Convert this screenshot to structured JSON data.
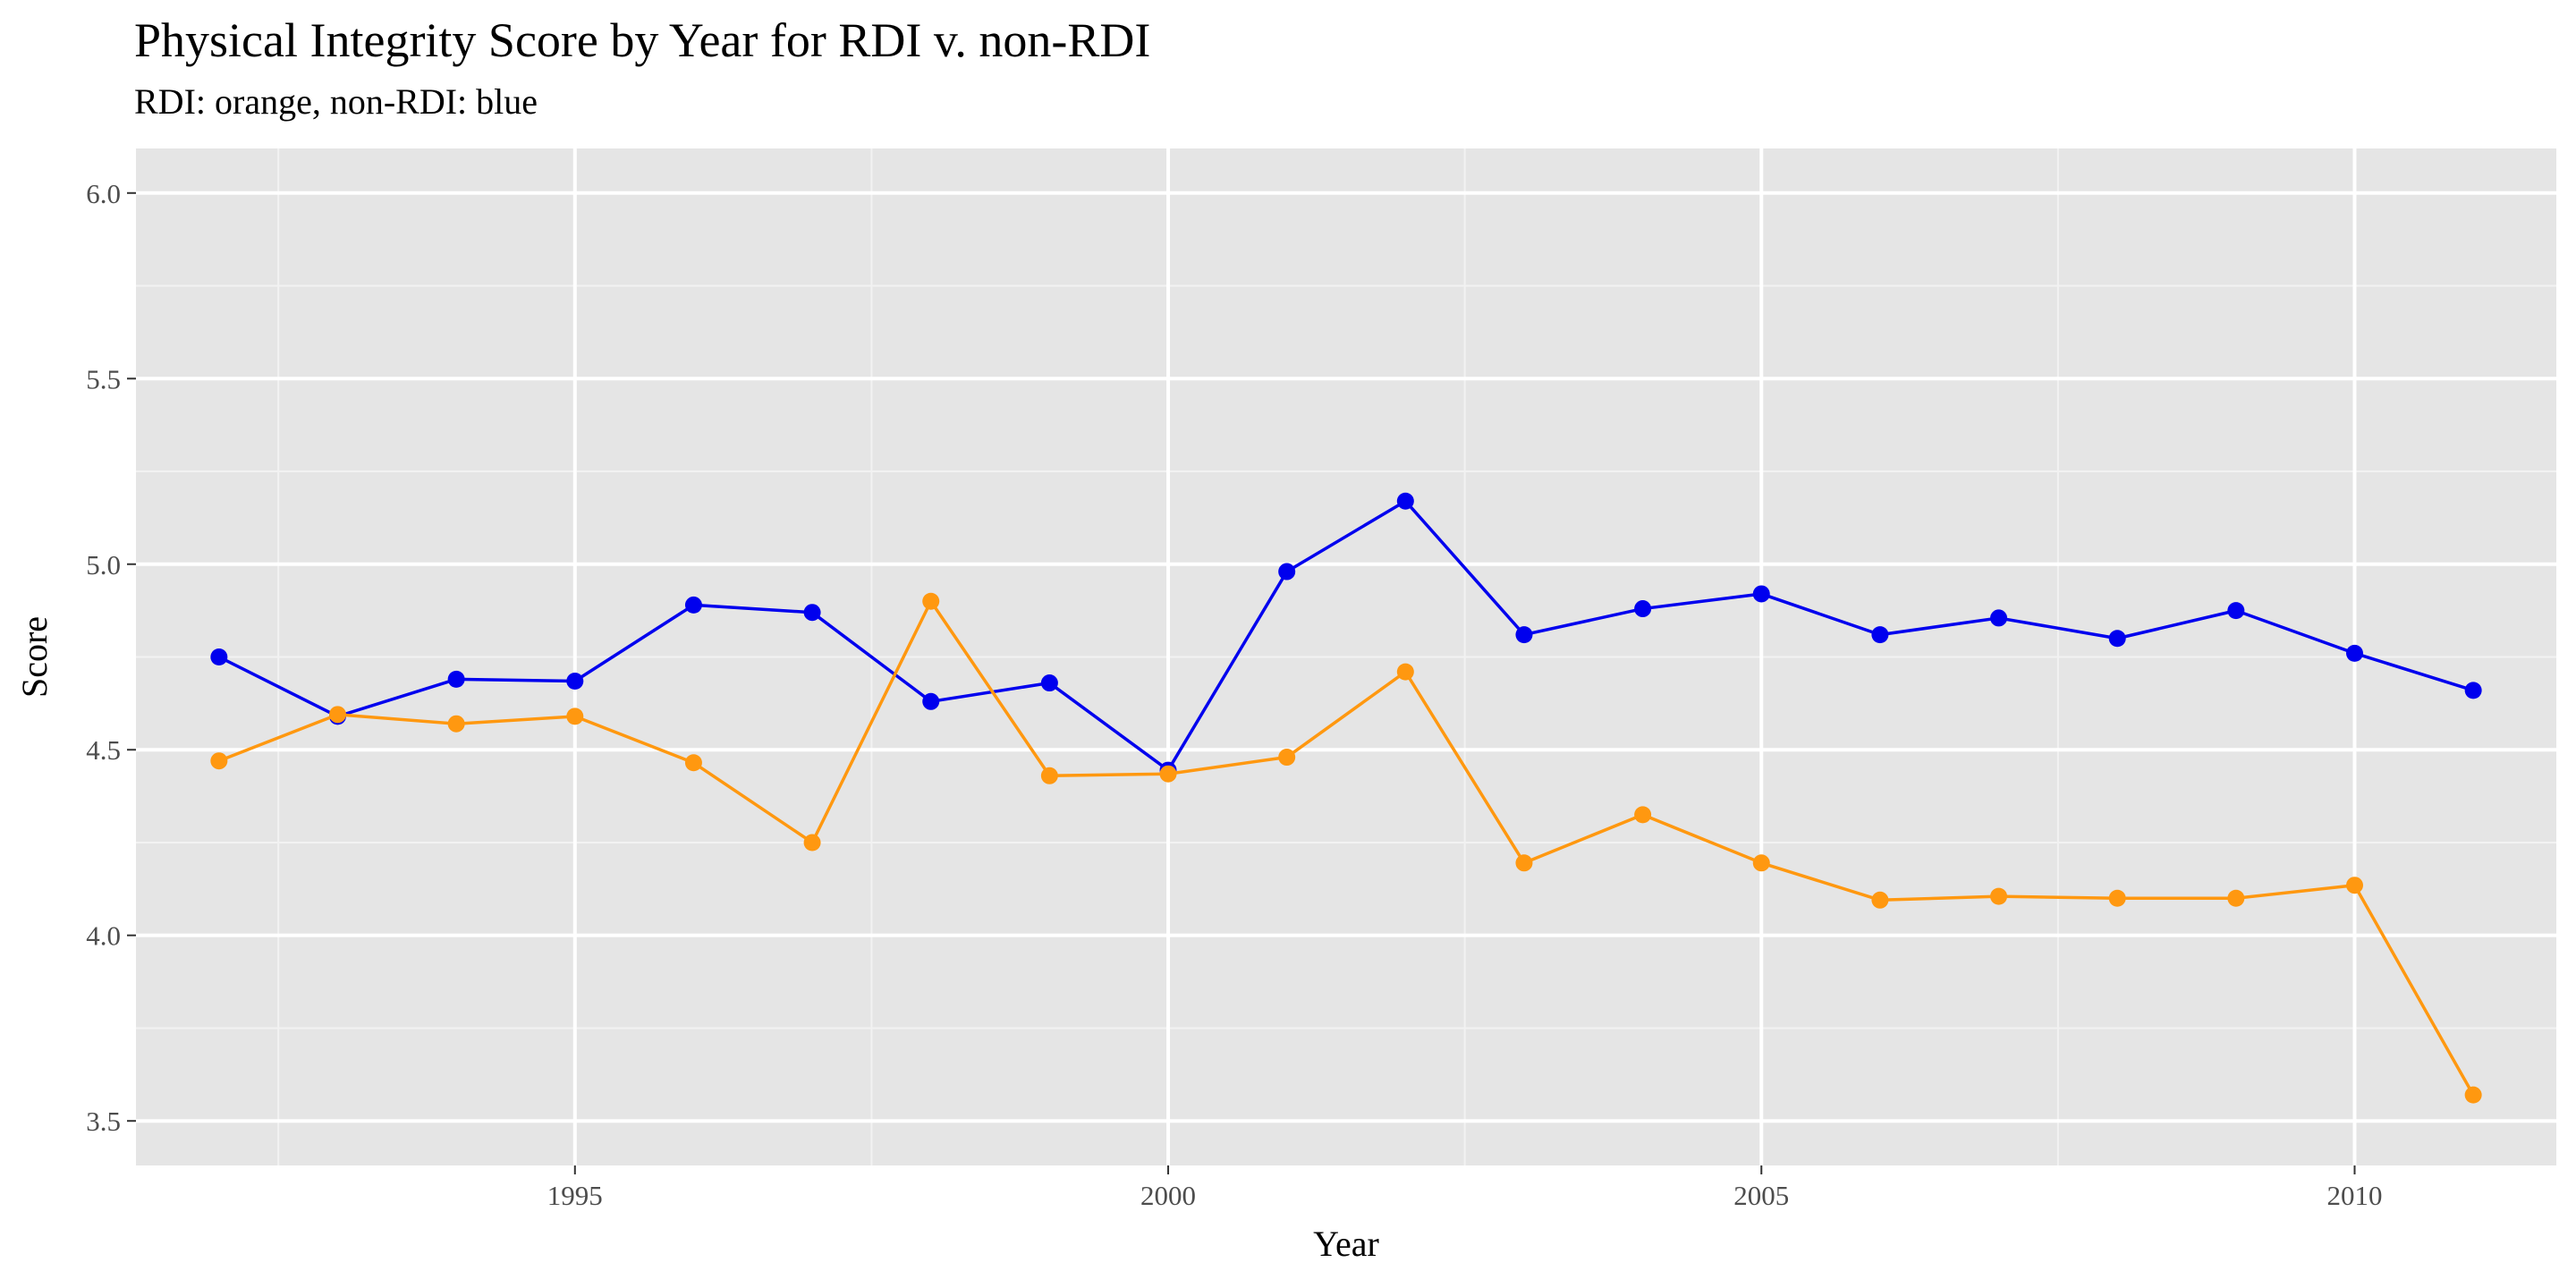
{
  "chart_data": {
    "type": "line",
    "title": "Physical Integrity Score by Year for RDI v. non-RDI",
    "subtitle": "RDI: orange, non-RDI: blue",
    "xlabel": "Year",
    "ylabel": "Score",
    "xlim": [
      1991.3,
      2011.7
    ],
    "ylim": [
      3.38,
      6.12
    ],
    "x_ticks": [
      1995,
      2000,
      2005,
      2010
    ],
    "x_tick_labels": [
      "1995",
      "2000",
      "2005",
      "2010"
    ],
    "y_ticks": [
      3.5,
      4.0,
      4.5,
      5.0,
      5.5,
      6.0
    ],
    "y_tick_labels": [
      "3.5",
      "4.0",
      "4.5",
      "5.0",
      "5.5",
      "6.0"
    ],
    "grid": true,
    "legend": "none",
    "panel_color": "#e5e5e5",
    "x": [
      1992,
      1993,
      1994,
      1995,
      1996,
      1997,
      1998,
      1999,
      2000,
      2001,
      2002,
      2003,
      2004,
      2005,
      2006,
      2007,
      2008,
      2009,
      2010,
      2011
    ],
    "series": [
      {
        "color": "#0000ee",
        "values": [
          4.75,
          4.59,
          4.69,
          4.685,
          4.89,
          4.87,
          4.63,
          4.68,
          4.445,
          4.98,
          5.17,
          4.81,
          4.88,
          4.92,
          4.81,
          4.855,
          4.8,
          4.875,
          4.76,
          4.66
        ]
      },
      {
        "color": "#ff9810",
        "values": [
          4.47,
          4.595,
          4.57,
          4.59,
          4.465,
          4.25,
          4.9,
          4.43,
          4.435,
          4.48,
          4.71,
          4.195,
          4.325,
          4.195,
          4.095,
          4.105,
          4.1,
          4.1,
          4.135,
          3.57
        ]
      }
    ]
  }
}
